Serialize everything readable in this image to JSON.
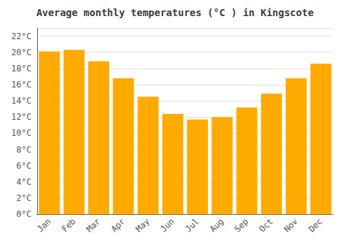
{
  "chart_data": {
    "type": "bar",
    "title": "Average monthly temperatures (°C ) in Kingscote",
    "categories": [
      "Jan",
      "Feb",
      "Mar",
      "Apr",
      "May",
      "Jun",
      "Jul",
      "Aug",
      "Sep",
      "Oct",
      "Nov",
      "Dec"
    ],
    "values": [
      20.1,
      20.3,
      18.9,
      16.8,
      14.5,
      12.4,
      11.7,
      12.0,
      13.2,
      14.9,
      16.8,
      18.6
    ],
    "color": "#FFAA00",
    "ylim": [
      0,
      23
    ],
    "yticks": [
      {
        "value": 0,
        "label": "0°C"
      },
      {
        "value": 2,
        "label": "2°C"
      },
      {
        "value": 4,
        "label": "4°C"
      },
      {
        "value": 6,
        "label": "6°C"
      },
      {
        "value": 8,
        "label": "8°C"
      },
      {
        "value": 10,
        "label": "10°C"
      },
      {
        "value": 12,
        "label": "12°C"
      },
      {
        "value": 14,
        "label": "14°C"
      },
      {
        "value": 16,
        "label": "16°C"
      },
      {
        "value": 18,
        "label": "18°C"
      },
      {
        "value": 20,
        "label": "20°C"
      },
      {
        "value": 22,
        "label": "22°C"
      }
    ],
    "grid": true
  }
}
